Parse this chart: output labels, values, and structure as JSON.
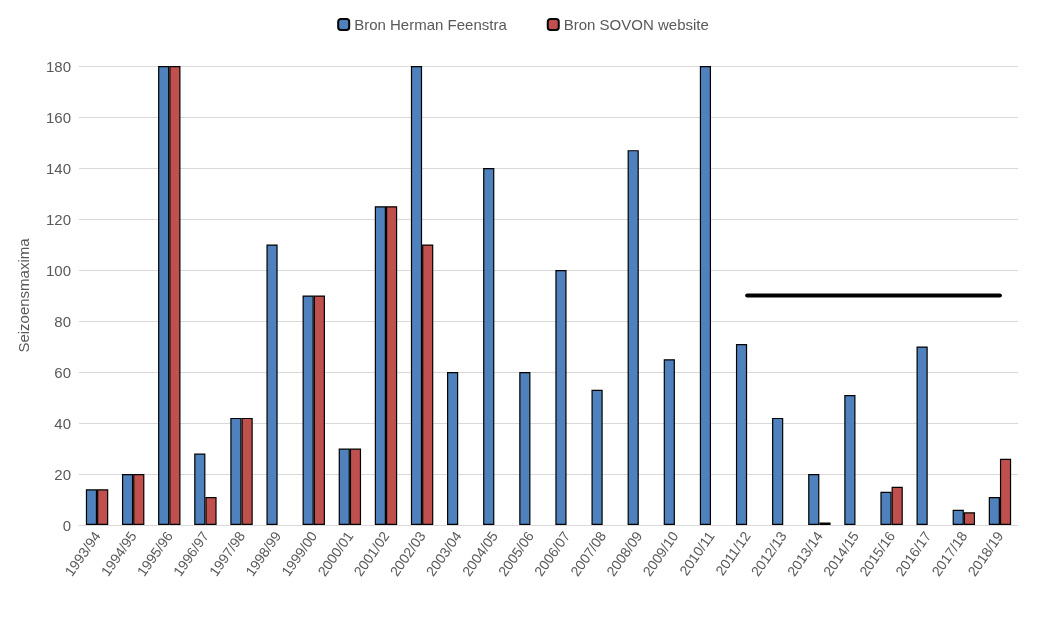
{
  "chart_data": {
    "type": "bar",
    "ylabel": "Seizoensmaxima",
    "categories": [
      "1993/94",
      "1994/95",
      "1995/96",
      "1996/97",
      "1997/98",
      "1998/99",
      "1999/00",
      "2000/01",
      "2001/02",
      "2002/03",
      "2003/04",
      "2004/05",
      "2005/06",
      "2006/07",
      "2007/08",
      "2008/09",
      "2009/10",
      "2010/11",
      "2011/12",
      "2012/13",
      "2013/14",
      "2014/15",
      "2015/16",
      "2016/17",
      "2017/18",
      "2018/19"
    ],
    "series": [
      {
        "name": "Bron Herman Feenstra",
        "color": "#4f81bd",
        "values": [
          14,
          20,
          180,
          28,
          42,
          110,
          90,
          30,
          125,
          180,
          60,
          140,
          60,
          100,
          53,
          147,
          65,
          180,
          71,
          42,
          20,
          51,
          13,
          70,
          6,
          11
        ]
      },
      {
        "name": "Bron SOVON website",
        "color": "#c0504d",
        "values": [
          14,
          20,
          180,
          11,
          42,
          null,
          90,
          30,
          125,
          110,
          null,
          null,
          null,
          null,
          null,
          null,
          null,
          null,
          null,
          null,
          1,
          null,
          15,
          null,
          5,
          26
        ]
      },
      {
        "type": "line",
        "color": "#000000",
        "marker": "none",
        "line_style": "solid",
        "values": [
          null,
          null,
          null,
          null,
          null,
          null,
          null,
          null,
          null,
          null,
          null,
          null,
          null,
          null,
          null,
          null,
          null,
          null,
          90,
          90,
          90,
          90,
          90,
          90,
          90,
          90
        ]
      }
    ],
    "ylim": [
      0,
      180
    ],
    "yticks": [
      0,
      20,
      40,
      60,
      80,
      100,
      120,
      140,
      160,
      180
    ],
    "grid": "y",
    "legend": "top"
  }
}
